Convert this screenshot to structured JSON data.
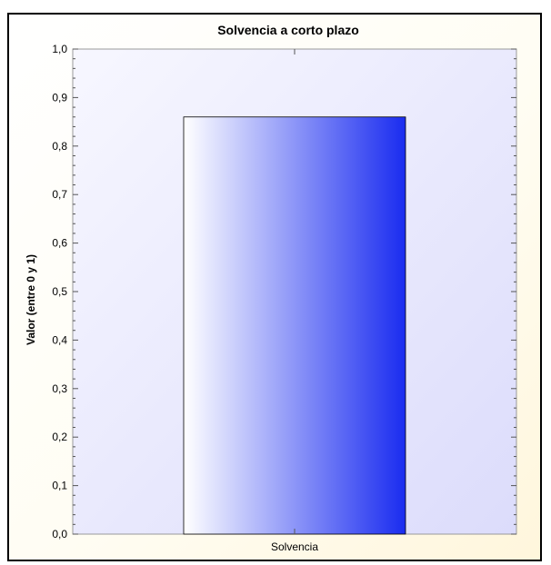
{
  "chart_data": {
    "type": "bar",
    "title": "Solvencia a corto plazo",
    "xlabel": "",
    "ylabel": "Valor (entre 0 y 1)",
    "categories": [
      "Solvencia"
    ],
    "values": [
      0.86
    ],
    "ylim": [
      0,
      1
    ],
    "yticks": [
      "0,0",
      "0,1",
      "0,2",
      "0,3",
      "0,4",
      "0,5",
      "0,6",
      "0,7",
      "0,8",
      "0,9",
      "1,0"
    ],
    "grid": false,
    "legend": "none",
    "colors": {
      "bar_light": "#ffffff",
      "bar_dark": "#1a2cf0",
      "plot_bg_light": "#f7f7ff",
      "plot_bg_dark": "#dcdcfb"
    }
  }
}
